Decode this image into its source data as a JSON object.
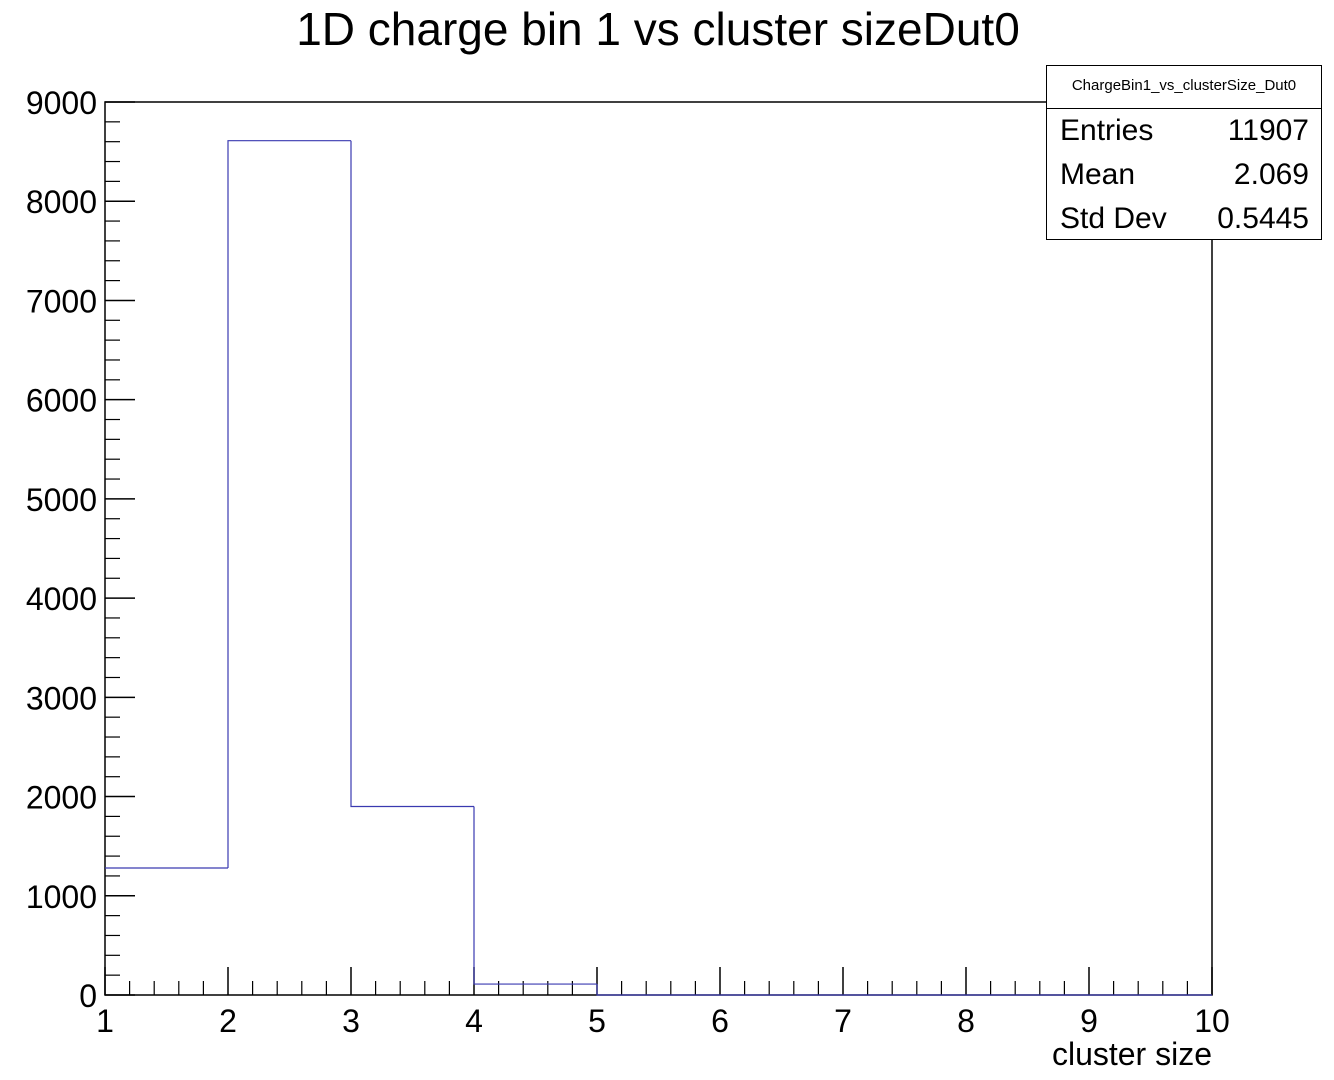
{
  "chart_data": {
    "type": "bar",
    "title": "1D charge bin 1 vs cluster sizeDut0",
    "xlabel": "cluster size",
    "ylabel": "",
    "xlim": [
      1,
      10
    ],
    "ylim": [
      0,
      9000
    ],
    "x_ticks": [
      1,
      2,
      3,
      4,
      5,
      6,
      7,
      8,
      9,
      10
    ],
    "y_ticks": [
      0,
      1000,
      2000,
      3000,
      4000,
      5000,
      6000,
      7000,
      8000,
      9000
    ],
    "bin_edges": [
      1,
      2,
      3,
      4,
      5,
      6,
      7,
      8,
      9,
      10
    ],
    "values": [
      1280,
      8610,
      1900,
      110,
      0,
      0,
      0,
      0,
      0
    ],
    "line_color": "#3a3ab0",
    "grid": false,
    "legend_placement": "top-right"
  },
  "stats": {
    "name": "ChargeBin1_vs_clusterSize_Dut0",
    "rows": [
      {
        "label": "Entries",
        "value": "11907"
      },
      {
        "label": "Mean",
        "value": "2.069"
      },
      {
        "label": "Std Dev",
        "value": "0.5445"
      }
    ]
  }
}
